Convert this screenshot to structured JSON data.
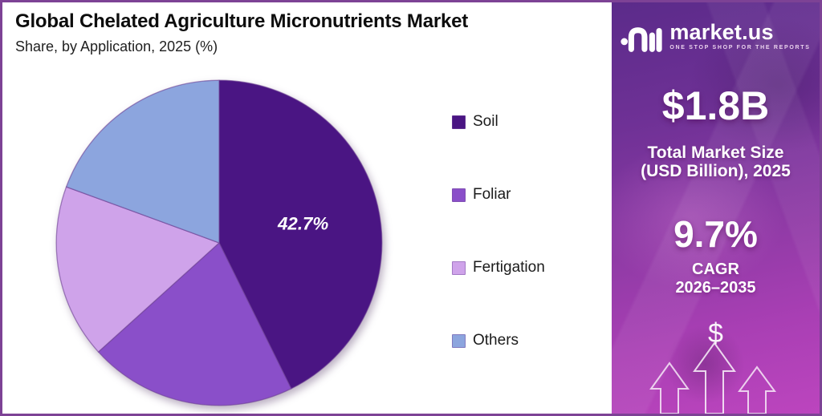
{
  "header": {
    "title": "Global Chelated Agriculture Micronutrients Market",
    "subtitle": "Share, by Application, 2025 (%)"
  },
  "chart_data": {
    "type": "pie",
    "title": "Global Chelated Agriculture Micronutrients Market",
    "subtitle": "Share, by Application, 2025 (%)",
    "unit": "%",
    "direction": "clockwise",
    "start_angle_deg": 0,
    "legend_position": "right",
    "segments": [
      {
        "label": "Soil",
        "value": 42.7,
        "data_label": "42.7%",
        "color": "#4A1583"
      },
      {
        "label": "Foliar",
        "value": 20.6,
        "data_label": "",
        "color": "#8A4FC9"
      },
      {
        "label": "Fertigation",
        "value": 17.3,
        "data_label": "",
        "color": "#CFA3EA"
      },
      {
        "label": "Others",
        "value": 19.4,
        "data_label": "",
        "color": "#8CA5DE"
      }
    ]
  },
  "sidebar": {
    "brand_name": "market.us",
    "brand_tagline": "ONE STOP SHOP FOR THE REPORTS",
    "market_size": {
      "value": "$1.8B",
      "label_line1": "Total Market Size",
      "label_line2": "(USD Billion), 2025"
    },
    "cagr": {
      "value": "9.7%",
      "label_line1": "CAGR",
      "label_line2": "2026–2035"
    },
    "dollar_symbol": "$"
  },
  "colors": {
    "frame_border": "#7D4295",
    "panel_background": "#FFFFFF",
    "sidebar_gradient_top": "#5B2B8A",
    "sidebar_gradient_mid": "#8E3AA5",
    "sidebar_gradient_bottom": "#BC45BE",
    "slice_stroke": "rgba(109,63,146,0.6)",
    "text_dark": "#111111",
    "text_white": "#FFFFFF"
  }
}
